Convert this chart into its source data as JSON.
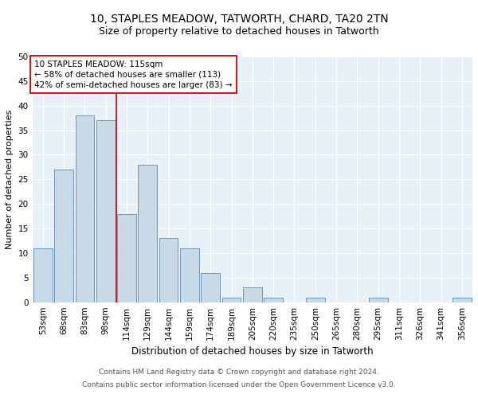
{
  "title1": "10, STAPLES MEADOW, TATWORTH, CHARD, TA20 2TN",
  "title2": "Size of property relative to detached houses in Tatworth",
  "xlabel": "Distribution of detached houses by size in Tatworth",
  "ylabel": "Number of detached properties",
  "categories": [
    "53sqm",
    "68sqm",
    "83sqm",
    "98sqm",
    "114sqm",
    "129sqm",
    "144sqm",
    "159sqm",
    "174sqm",
    "189sqm",
    "205sqm",
    "220sqm",
    "235sqm",
    "250sqm",
    "265sqm",
    "280sqm",
    "295sqm",
    "311sqm",
    "326sqm",
    "341sqm",
    "356sqm"
  ],
  "values": [
    11,
    27,
    38,
    37,
    18,
    28,
    13,
    11,
    6,
    1,
    3,
    1,
    0,
    1,
    0,
    0,
    1,
    0,
    0,
    0,
    1
  ],
  "bar_color": "#c8d9e8",
  "bar_edge_color": "#5b8ab5",
  "vline_x_index": 4,
  "vline_color": "#cc0000",
  "annotation_box_color": "#cc0000",
  "annotation_lines": [
    "10 STAPLES MEADOW: 115sqm",
    "← 58% of detached houses are smaller (113)",
    "42% of semi-detached houses are larger (83) →"
  ],
  "ylim": [
    0,
    50
  ],
  "yticks": [
    0,
    5,
    10,
    15,
    20,
    25,
    30,
    35,
    40,
    45,
    50
  ],
  "bg_color": "#e8f0f8",
  "footer1": "Contains HM Land Registry data © Crown copyright and database right 2024.",
  "footer2": "Contains public sector information licensed under the Open Government Licence v3.0.",
  "title1_fontsize": 10,
  "title2_fontsize": 9,
  "xlabel_fontsize": 8.5,
  "ylabel_fontsize": 8,
  "tick_fontsize": 7.5,
  "annotation_fontsize": 7.5,
  "footer_fontsize": 6.5
}
